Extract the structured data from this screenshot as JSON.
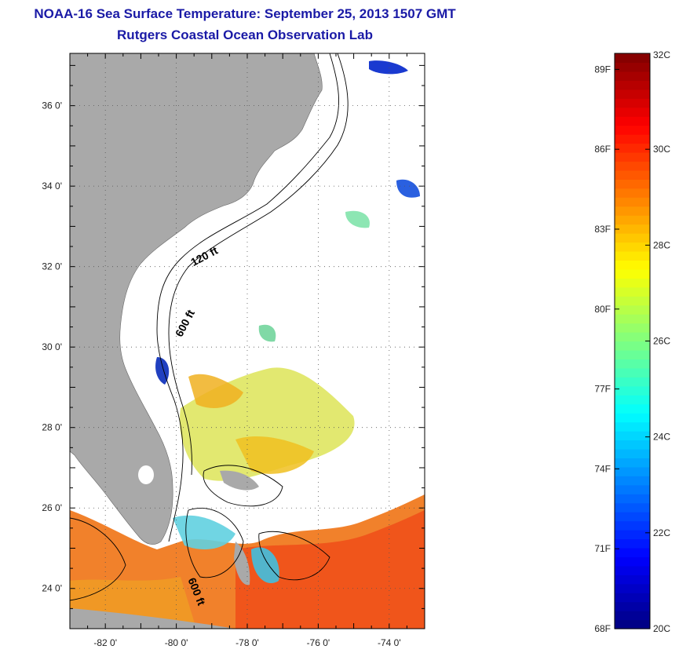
{
  "title": {
    "line1": "NOAA-16 Sea Surface Temperature:  September 25, 2013 1507 GMT",
    "line2": "Rutgers Coastal Ocean Observation Lab"
  },
  "map": {
    "lat_ticks": [
      {
        "value": 36,
        "label": "36 0'"
      },
      {
        "value": 34,
        "label": "34 0'"
      },
      {
        "value": 32,
        "label": "32 0'"
      },
      {
        "value": 30,
        "label": "30 0'"
      },
      {
        "value": 28,
        "label": "28 0'"
      },
      {
        "value": 26,
        "label": "26 0'"
      },
      {
        "value": 24,
        "label": "24 0'"
      }
    ],
    "lon_ticks": [
      {
        "value": -82,
        "label": "-82 0'"
      },
      {
        "value": -80,
        "label": "-80 0'"
      },
      {
        "value": -78,
        "label": "-78 0'"
      },
      {
        "value": -76,
        "label": "-76 0'"
      },
      {
        "value": -74,
        "label": "-74 0'"
      }
    ],
    "lat_range": [
      23,
      37.3
    ],
    "lon_range": [
      -83,
      -73
    ],
    "contours": [
      "120 ft",
      "600 ft",
      "600 ft"
    ],
    "land_color": "#a9a9a9",
    "grid": true
  },
  "colorbar": {
    "range_c": [
      20,
      32
    ],
    "range_f": [
      68,
      89.6
    ],
    "c_labels": [
      "32C",
      "30C",
      "28C",
      "26C",
      "24C",
      "22C",
      "20C"
    ],
    "f_labels": [
      "89F",
      "86F",
      "83F",
      "80F",
      "77F",
      "74F",
      "71F",
      "68F"
    ],
    "colormap": "jet"
  }
}
